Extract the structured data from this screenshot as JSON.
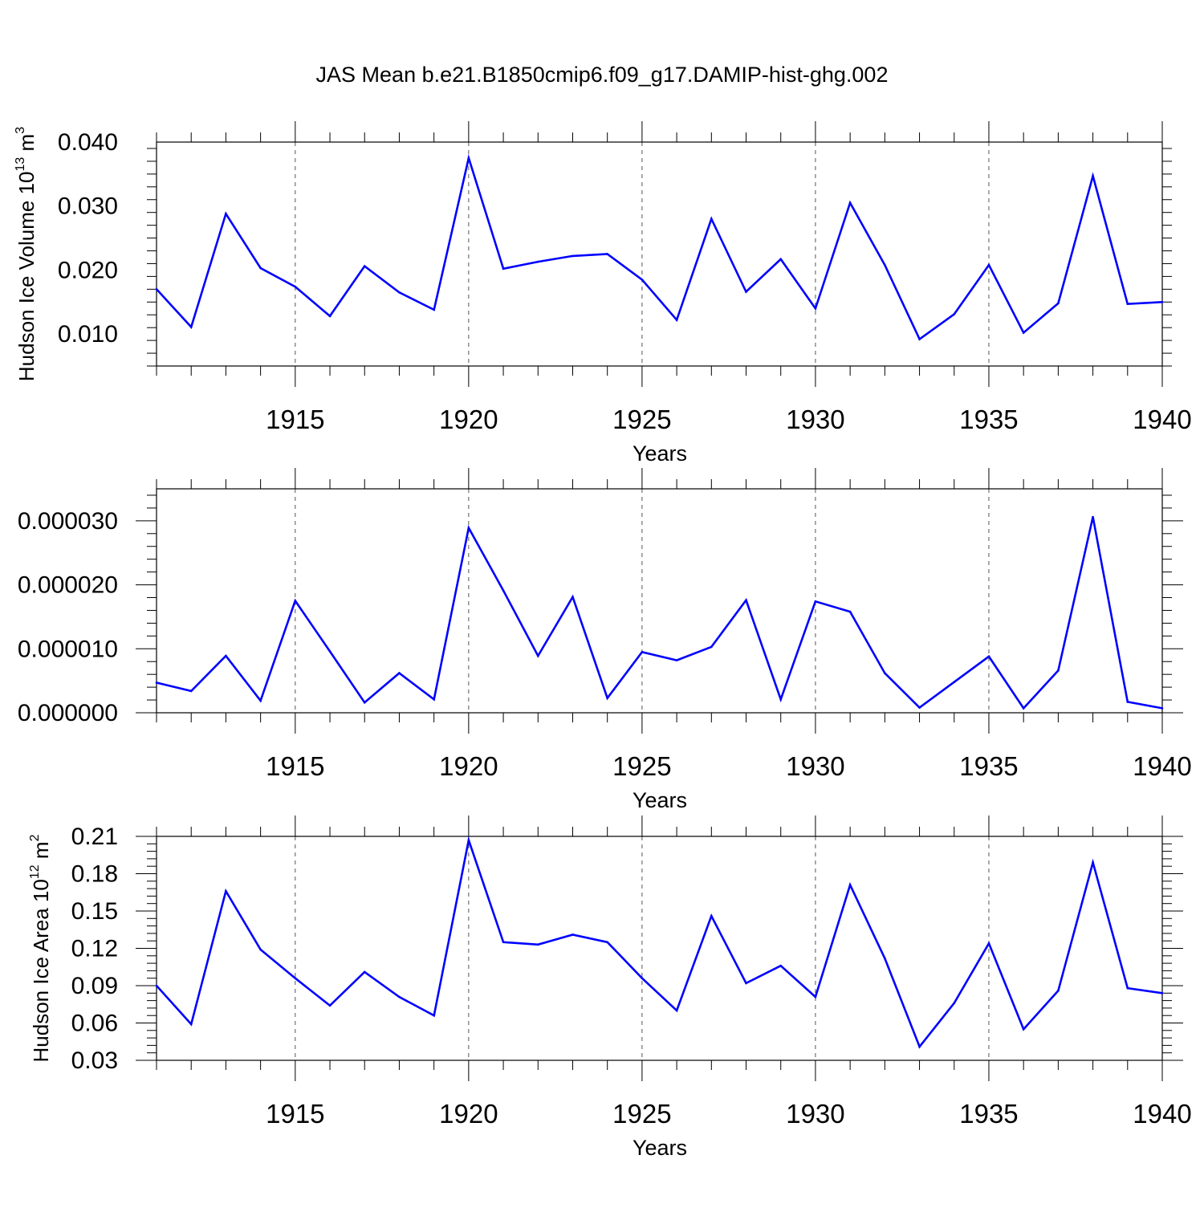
{
  "title": "JAS Mean b.e21.B1850cmip6.f09_g17.DAMIP-hist-ghg.002",
  "colors": {
    "line": "#0000ff",
    "axis": "#000000",
    "grid": "#555555"
  },
  "chart_data": [
    {
      "type": "line",
      "title": "",
      "ylabel_main": "Hudson Ice Volume 10",
      "ylabel_exp": "13",
      "ylabel_unit": " m",
      "ylabel_unit_exp": "3",
      "xlabel": "Years",
      "xlim": [
        1911,
        1940
      ],
      "ylim": [
        0.005,
        0.04
      ],
      "xticks": [
        1915,
        1920,
        1925,
        1930,
        1935,
        1940
      ],
      "yticks": [
        0.01,
        0.02,
        0.03,
        0.04
      ],
      "ytick_labels": [
        "0.010",
        "0.020",
        "0.030",
        "0.040"
      ],
      "grid": "x-dashed",
      "x": [
        1911,
        1912,
        1913,
        1914,
        1915,
        1916,
        1917,
        1918,
        1919,
        1920,
        1921,
        1922,
        1923,
        1924,
        1925,
        1926,
        1927,
        1928,
        1929,
        1930,
        1931,
        1932,
        1933,
        1934,
        1935,
        1936,
        1937,
        1938,
        1939,
        1940
      ],
      "values": [
        0.017,
        0.0111,
        0.0288,
        0.0203,
        0.0174,
        0.0128,
        0.0206,
        0.0165,
        0.0138,
        0.0375,
        0.0202,
        0.0213,
        0.0222,
        0.0225,
        0.0185,
        0.0122,
        0.028,
        0.0166,
        0.0217,
        0.014,
        0.0305,
        0.0208,
        0.0092,
        0.0131,
        0.0208,
        0.0102,
        0.0148,
        0.0347,
        0.0147,
        0.015
      ]
    },
    {
      "type": "line",
      "title": "",
      "ylabel_main": "",
      "xlabel": "Years",
      "xlim": [
        1911,
        1940
      ],
      "ylim": [
        0.0,
        3.5e-05
      ],
      "xticks": [
        1915,
        1920,
        1925,
        1930,
        1935,
        1940
      ],
      "yticks": [
        0.0,
        1e-05,
        2e-05,
        3e-05
      ],
      "ytick_labels": [
        "0.000000",
        "0.000010",
        "0.000020",
        "0.000030"
      ],
      "grid": "x-dashed",
      "x": [
        1911,
        1912,
        1913,
        1914,
        1915,
        1916,
        1917,
        1918,
        1919,
        1920,
        1921,
        1922,
        1923,
        1924,
        1925,
        1926,
        1927,
        1928,
        1929,
        1930,
        1931,
        1932,
        1933,
        1934,
        1935,
        1936,
        1937,
        1938,
        1939,
        1940
      ],
      "values": [
        4.7e-06,
        3.4e-06,
        8.9e-06,
        1.9e-06,
        1.75e-05,
        9.6e-06,
        1.6e-06,
        6.2e-06,
        2.1e-06,
        2.89e-05,
        1.91e-05,
        8.9e-06,
        1.81e-05,
        2.3e-06,
        9.5e-06,
        8.2e-06,
        1.03e-05,
        1.76e-05,
        2.1e-06,
        1.74e-05,
        1.58e-05,
        6.2e-06,
        8e-07,
        4.8e-06,
        8.8e-06,
        7e-07,
        6.6e-06,
        3.06e-05,
        1.7e-06,
        7e-07
      ]
    },
    {
      "type": "line",
      "title": "",
      "ylabel_main": "Hudson Ice Area 10",
      "ylabel_exp": "12",
      "ylabel_unit": " m",
      "ylabel_unit_exp": "2",
      "xlabel": "Years",
      "xlim": [
        1911,
        1940
      ],
      "ylim": [
        0.03,
        0.21
      ],
      "xticks": [
        1915,
        1920,
        1925,
        1930,
        1935,
        1940
      ],
      "yticks": [
        0.03,
        0.06,
        0.09,
        0.12,
        0.15,
        0.18,
        0.21
      ],
      "ytick_labels": [
        "0.03",
        "0.06",
        "0.09",
        "0.12",
        "0.15",
        "0.18",
        "0.21"
      ],
      "grid": "x-dashed",
      "x": [
        1911,
        1912,
        1913,
        1914,
        1915,
        1916,
        1917,
        1918,
        1919,
        1920,
        1921,
        1922,
        1923,
        1924,
        1925,
        1926,
        1927,
        1928,
        1929,
        1930,
        1931,
        1932,
        1933,
        1934,
        1935,
        1936,
        1937,
        1938,
        1939,
        1940
      ],
      "values": [
        0.09,
        0.059,
        0.166,
        0.119,
        0.096,
        0.074,
        0.101,
        0.081,
        0.066,
        0.207,
        0.125,
        0.123,
        0.131,
        0.125,
        0.096,
        0.07,
        0.146,
        0.092,
        0.106,
        0.081,
        0.171,
        0.112,
        0.041,
        0.076,
        0.124,
        0.055,
        0.086,
        0.189,
        0.088,
        0.084
      ]
    }
  ]
}
